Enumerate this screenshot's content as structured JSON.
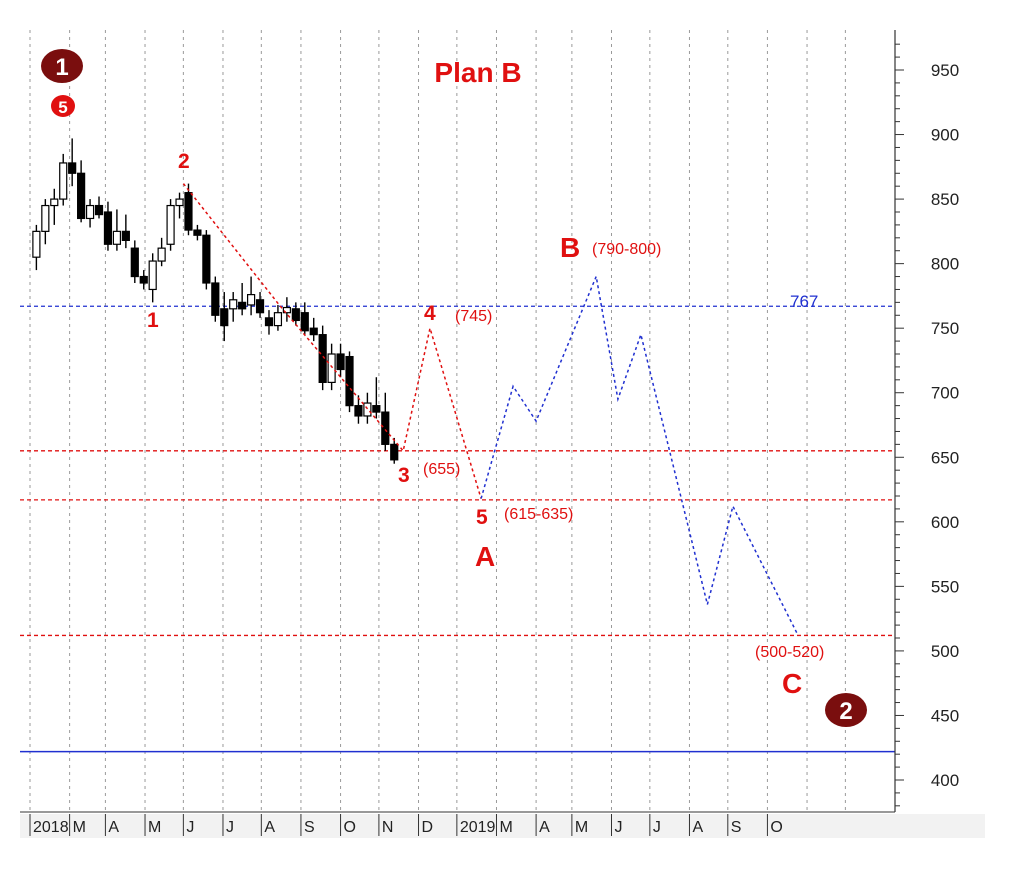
{
  "chart_data": {
    "type": "candlestick",
    "title": "Plan B",
    "ylim": [
      380,
      975
    ],
    "y_ticks": [
      400,
      450,
      500,
      550,
      600,
      650,
      700,
      750,
      800,
      850,
      900,
      950
    ],
    "x_labels": [
      "2018",
      "M",
      "A",
      "M",
      "J",
      "J",
      "A",
      "S",
      "O",
      "N",
      "D",
      "2019",
      "M",
      "A",
      "M",
      "J",
      "J",
      "A",
      "S",
      "O"
    ],
    "grid": "vertical dotted",
    "colors": {
      "candle": "#000000",
      "wave": "#e01010",
      "projection": "#2030d0",
      "support": "#2030d0",
      "badge": "#7a0e0e"
    },
    "candles": [
      {
        "o": 805,
        "h": 830,
        "l": 795,
        "c": 825
      },
      {
        "o": 825,
        "h": 850,
        "l": 815,
        "c": 845
      },
      {
        "o": 845,
        "h": 858,
        "l": 830,
        "c": 850
      },
      {
        "o": 850,
        "h": 885,
        "l": 845,
        "c": 878
      },
      {
        "o": 878,
        "h": 897,
        "l": 860,
        "c": 870
      },
      {
        "o": 870,
        "h": 880,
        "l": 832,
        "c": 835
      },
      {
        "o": 835,
        "h": 850,
        "l": 828,
        "c": 845
      },
      {
        "o": 845,
        "h": 852,
        "l": 835,
        "c": 838
      },
      {
        "o": 840,
        "h": 848,
        "l": 810,
        "c": 815
      },
      {
        "o": 815,
        "h": 842,
        "l": 810,
        "c": 825
      },
      {
        "o": 825,
        "h": 838,
        "l": 812,
        "c": 818
      },
      {
        "o": 812,
        "h": 818,
        "l": 785,
        "c": 790
      },
      {
        "o": 790,
        "h": 795,
        "l": 780,
        "c": 785
      },
      {
        "o": 780,
        "h": 808,
        "l": 770,
        "c": 802
      },
      {
        "o": 802,
        "h": 820,
        "l": 798,
        "c": 812
      },
      {
        "o": 815,
        "h": 850,
        "l": 810,
        "c": 845
      },
      {
        "o": 845,
        "h": 855,
        "l": 835,
        "c": 850
      },
      {
        "o": 855,
        "h": 862,
        "l": 822,
        "c": 826
      },
      {
        "o": 826,
        "h": 830,
        "l": 818,
        "c": 822
      },
      {
        "o": 822,
        "h": 826,
        "l": 780,
        "c": 785
      },
      {
        "o": 785,
        "h": 790,
        "l": 755,
        "c": 760
      },
      {
        "o": 765,
        "h": 778,
        "l": 740,
        "c": 752
      },
      {
        "o": 765,
        "h": 778,
        "l": 755,
        "c": 772
      },
      {
        "o": 770,
        "h": 785,
        "l": 760,
        "c": 765
      },
      {
        "o": 768,
        "h": 790,
        "l": 760,
        "c": 776
      },
      {
        "o": 772,
        "h": 778,
        "l": 758,
        "c": 762
      },
      {
        "o": 758,
        "h": 764,
        "l": 745,
        "c": 752
      },
      {
        "o": 752,
        "h": 768,
        "l": 748,
        "c": 762
      },
      {
        "o": 762,
        "h": 774,
        "l": 755,
        "c": 766
      },
      {
        "o": 765,
        "h": 770,
        "l": 752,
        "c": 756
      },
      {
        "o": 762,
        "h": 770,
        "l": 745,
        "c": 748
      },
      {
        "o": 750,
        "h": 758,
        "l": 740,
        "c": 745
      },
      {
        "o": 745,
        "h": 752,
        "l": 702,
        "c": 708
      },
      {
        "o": 708,
        "h": 738,
        "l": 702,
        "c": 730
      },
      {
        "o": 730,
        "h": 738,
        "l": 712,
        "c": 718
      },
      {
        "o": 728,
        "h": 732,
        "l": 685,
        "c": 690
      },
      {
        "o": 690,
        "h": 698,
        "l": 676,
        "c": 682
      },
      {
        "o": 682,
        "h": 700,
        "l": 676,
        "c": 692
      },
      {
        "o": 690,
        "h": 712,
        "l": 680,
        "c": 685
      },
      {
        "o": 685,
        "h": 700,
        "l": 655,
        "c": 660
      },
      {
        "o": 660,
        "h": 665,
        "l": 645,
        "c": 648
      }
    ],
    "candle_x_start": "2018-01-06",
    "candle_x_step_weeks": 1,
    "wave_line": [
      [
        "2018-05-01",
        862
      ],
      [
        "2018-07-15",
        768
      ],
      [
        "2018-10-20",
        655
      ],
      [
        "2018-11-10",
        750
      ],
      [
        "2018-12-20",
        618
      ]
    ],
    "projection": [
      [
        "2018-12-20",
        618
      ],
      [
        "2019-01-14",
        705
      ],
      [
        "2019-02-01",
        678
      ],
      [
        "2019-03-20",
        790
      ],
      [
        "2019-04-06",
        695
      ],
      [
        "2019-04-24",
        745
      ],
      [
        "2019-06-15",
        536
      ],
      [
        "2019-07-05",
        612
      ],
      [
        "2019-08-25",
        512
      ]
    ],
    "support_lines": [
      {
        "value": 655,
        "style": "dashed",
        "color": "#e01010"
      },
      {
        "value": 617,
        "style": "dashed",
        "color": "#e01010"
      },
      {
        "value": 512,
        "style": "dashed",
        "color": "#e01010"
      },
      {
        "value": 767,
        "style": "dashed",
        "color": "#2030d0"
      },
      {
        "value": 422,
        "style": "solid",
        "color": "#2030d0"
      }
    ],
    "labels": {
      "level_767": "767",
      "wave1": "1",
      "wave2": "2",
      "wave3": "3",
      "wave4": "4",
      "wave5": "5",
      "wave3_range": "(655)",
      "wave4_range": "(745)",
      "wave5_range": "(615-635)",
      "waveA": "A",
      "waveB": "B",
      "waveB_range": "(790-800)",
      "waveC": "C",
      "waveC_range": "(500-520)",
      "badge_top": "1",
      "badge_top_sub": "5",
      "badge_bottom": "2"
    }
  }
}
